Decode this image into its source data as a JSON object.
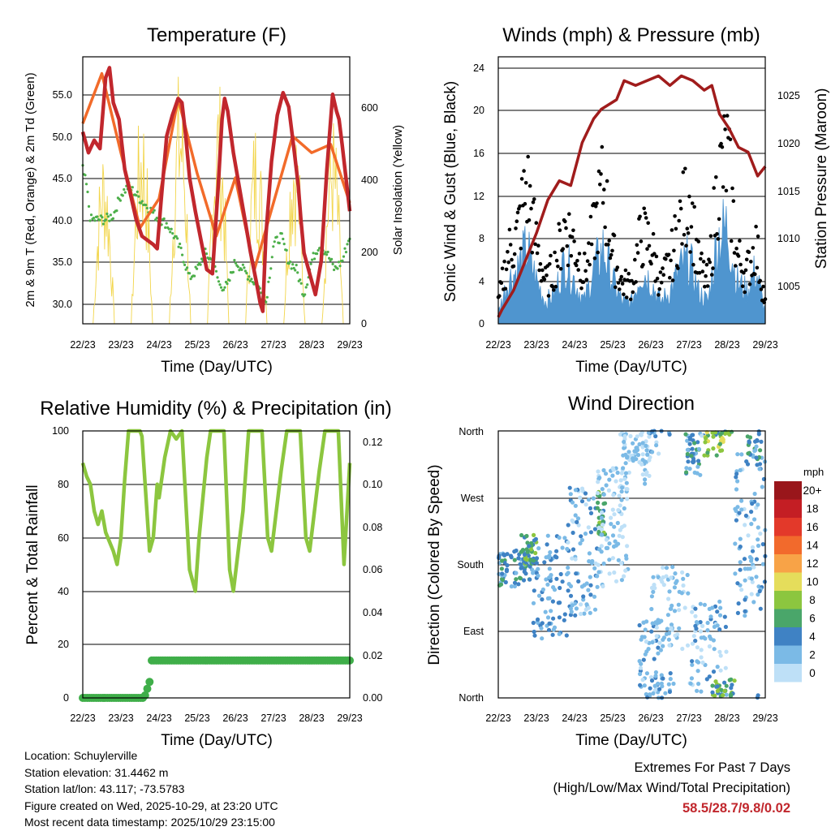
{
  "chart_data": [
    {
      "id": "temperature",
      "type": "line",
      "title": "Temperature (F)",
      "xlabel": "Time (Day/UTC)",
      "ylabel": "2m & 9m T (Red, Orange) & 2m Td (Green)",
      "y2label": "Solar Insolation (Yellow)",
      "xticks": [
        "22/23",
        "23/23",
        "24/23",
        "25/23",
        "26/23",
        "27/23",
        "28/23",
        "29/23"
      ],
      "ylim": [
        27.5,
        59.5
      ],
      "yticks": [
        "30.0",
        "35.0",
        "40.0",
        "45.0",
        "50.0",
        "55.0"
      ],
      "y2lim": [
        0,
        740
      ],
      "y2ticks": [
        "0",
        "200",
        "400",
        "600"
      ],
      "grid": true,
      "series": [
        {
          "name": "2m T",
          "color": "#c1272d",
          "x": [
            0,
            0.15,
            0.3,
            0.45,
            0.6,
            0.7,
            0.8,
            0.95,
            1.1,
            1.25,
            1.4,
            1.55,
            1.7,
            1.85,
            1.95,
            2.05,
            2.2,
            2.35,
            2.5,
            2.6,
            2.7,
            2.8,
            2.95,
            3.1,
            3.25,
            3.4,
            3.55,
            3.65,
            3.72,
            3.8,
            3.95,
            4.1,
            4.25,
            4.4,
            4.55,
            4.65,
            4.72,
            4.8,
            4.95,
            5.1,
            5.25,
            5.4,
            5.55,
            5.65,
            5.72,
            5.8,
            5.95,
            6.1,
            6.25,
            6.4,
            6.55,
            6.65,
            6.72,
            6.8,
            6.9,
            7.0
          ],
          "values": [
            50.5,
            48,
            49.5,
            48.5,
            57,
            58.2,
            54,
            52,
            46,
            43,
            40,
            38,
            37.5,
            37,
            36.5,
            42,
            50,
            52.5,
            54.5,
            54,
            50,
            45,
            41,
            37.5,
            34,
            33.5,
            44,
            52,
            54.5,
            53,
            48,
            44,
            40,
            36,
            32.5,
            30,
            29,
            38,
            47,
            52.5,
            55.2,
            53.5,
            48,
            44,
            40,
            36,
            33.5,
            31,
            35,
            46,
            55,
            53,
            52,
            49,
            45,
            41
          ]
        },
        {
          "name": "9m T",
          "color": "#f26b2a",
          "x": [
            0,
            0.5,
            1,
            1.5,
            2,
            2.5,
            3,
            3.5,
            4,
            4.5,
            5,
            5.5,
            6,
            6.5,
            7
          ],
          "values": [
            51.5,
            57.5,
            48,
            39,
            42.5,
            54.5,
            45.5,
            38,
            45,
            34,
            42,
            50,
            48,
            49,
            42
          ]
        },
        {
          "name": "2m Td",
          "color": "#4daf4a",
          "x": [
            0,
            0.1,
            0.2,
            0.4,
            0.6,
            0.8,
            1,
            1.2,
            1.4,
            1.6,
            1.8,
            2,
            2.2,
            2.4,
            2.6,
            2.8,
            3,
            3.2,
            3.4,
            3.6,
            3.8,
            4,
            4.2,
            4.4,
            4.6,
            4.8,
            5,
            5.2,
            5.4,
            5.6,
            5.8,
            6,
            6.2,
            6.4,
            6.6,
            6.8,
            7
          ],
          "values": [
            46,
            44,
            40,
            40,
            40,
            40.5,
            43,
            44,
            43,
            42,
            41,
            40,
            39.5,
            38,
            36,
            33,
            34,
            36,
            35,
            32,
            32,
            35,
            34,
            33,
            32,
            30,
            37,
            38,
            35,
            34,
            31,
            35,
            37,
            36,
            34,
            35,
            38
          ]
        }
      ],
      "solar": {
        "name": "Solar Insolation",
        "color": "#f2d54a",
        "peaks": [
          {
            "day": 0.55,
            "value": 520
          },
          {
            "day": 1.55,
            "value": 640
          },
          {
            "day": 2.55,
            "value": 730
          },
          {
            "day": 3.55,
            "value": 700
          },
          {
            "day": 4.55,
            "value": 600
          },
          {
            "day": 5.55,
            "value": 610
          },
          {
            "day": 6.55,
            "value": 600
          }
        ]
      }
    },
    {
      "id": "winds",
      "type": "scatter",
      "title": "Winds (mph) & Pressure (mb)",
      "xlabel": "Time (Day/UTC)",
      "ylabel": "Sonic Wind & Gust (Blue, Black)",
      "y2label": "Station Pressure (Maroon)",
      "xticks": [
        "22/23",
        "23/23",
        "24/23",
        "25/23",
        "26/23",
        "27/23",
        "28/23",
        "29/23"
      ],
      "ylim": [
        0,
        25
      ],
      "yticks": [
        "0",
        "4",
        "8",
        "12",
        "16",
        "20",
        "24"
      ],
      "y2lim": [
        1001,
        1029
      ],
      "y2ticks": [
        "1005",
        "1010",
        "1015",
        "1020",
        "1025"
      ],
      "grid": true,
      "series": [
        {
          "name": "Sonic Wind",
          "color": "#4f95cf",
          "x": [
            0,
            0.25,
            0.5,
            0.75,
            1,
            1.25,
            1.5,
            1.75,
            2,
            2.25,
            2.5,
            2.75,
            3,
            3.25,
            3.5,
            3.75,
            4,
            4.25,
            4.5,
            4.75,
            5,
            5.25,
            5.5,
            5.75,
            6,
            6.25,
            6.5,
            6.75,
            7
          ],
          "values": [
            1,
            4,
            5,
            7,
            4,
            2,
            3,
            6,
            4,
            2,
            5,
            7,
            4,
            2,
            2,
            5,
            4,
            2,
            3,
            5,
            6,
            3,
            2,
            8,
            9,
            4,
            3,
            5,
            1
          ]
        },
        {
          "name": "Gust",
          "color": "#000000",
          "x": [
            0,
            0.25,
            0.5,
            0.75,
            1,
            1.25,
            1.5,
            1.75,
            2,
            2.25,
            2.5,
            2.75,
            3,
            3.25,
            3.5,
            3.75,
            4,
            4.25,
            4.5,
            4.75,
            5,
            5.25,
            5.5,
            5.75,
            6,
            6.25,
            6.5,
            6.75,
            7
          ],
          "values": [
            2,
            7,
            9,
            14,
            8,
            4,
            6,
            10,
            8,
            5,
            9,
            14,
            7,
            4,
            4,
            9,
            8,
            4,
            6,
            10,
            13,
            6,
            4,
            14,
            17,
            7,
            5,
            8,
            2
          ]
        },
        {
          "name": "Station Pressure",
          "color": "#a01c1c",
          "x": [
            0,
            0.1,
            0.4,
            0.7,
            1,
            1.3,
            1.6,
            1.9,
            2.2,
            2.5,
            2.7,
            2.9,
            3.1,
            3.3,
            3.6,
            3.9,
            4.2,
            4.5,
            4.8,
            5.1,
            5.4,
            5.6,
            5.8,
            6.05,
            6.3,
            6.55,
            6.8,
            7
          ],
          "values": [
            1001.7,
            1002.5,
            1004.5,
            1007.5,
            1010.5,
            1014,
            1016,
            1015.5,
            1020,
            1022.5,
            1023.5,
            1024,
            1024.5,
            1026.5,
            1026,
            1026.5,
            1027,
            1026,
            1027,
            1026.5,
            1025.5,
            1026,
            1023,
            1021.5,
            1019.5,
            1019,
            1016.5,
            1017.5
          ]
        }
      ]
    },
    {
      "id": "humidity",
      "type": "line",
      "title": "Relative Humidity (%) & Precipitation (in)",
      "xlabel": "Time (Day/UTC)",
      "ylabel": "Percent & Total Rainfall",
      "xticks": [
        "22/23",
        "23/23",
        "24/23",
        "25/23",
        "26/23",
        "27/23",
        "28/23",
        "29/23"
      ],
      "ylim": [
        0,
        100
      ],
      "yticks": [
        "0",
        "20",
        "40",
        "60",
        "80",
        "100"
      ],
      "y2lim": [
        0,
        0.125
      ],
      "y2ticks": [
        "0.00",
        "0.02",
        "0.04",
        "0.06",
        "0.08",
        "0.10",
        "0.12"
      ],
      "grid": true,
      "series": [
        {
          "name": "Relative Humidity",
          "color": "#8cc63f",
          "x": [
            0,
            0.1,
            0.2,
            0.3,
            0.4,
            0.5,
            0.6,
            0.8,
            0.9,
            1,
            1.1,
            1.2,
            1.3,
            1.4,
            1.5,
            1.55,
            1.75,
            1.85,
            1.95,
            2,
            2.15,
            2.3,
            2.45,
            2.6,
            2.8,
            2.95,
            3.05,
            3.25,
            3.35,
            3.5,
            3.7,
            3.85,
            3.95,
            4.2,
            4.35,
            4.5,
            4.7,
            4.85,
            4.95,
            5.2,
            5.35,
            5.5,
            5.7,
            5.85,
            5.95,
            6.2,
            6.35,
            6.5,
            6.7,
            6.85,
            7
          ],
          "values": [
            88,
            83,
            80,
            70,
            65,
            70,
            62,
            55,
            50,
            60,
            82,
            100,
            100,
            100,
            100,
            98,
            55,
            60,
            80,
            75,
            90,
            100,
            97,
            100,
            48,
            40,
            60,
            90,
            100,
            100,
            100,
            48,
            40,
            70,
            100,
            100,
            100,
            60,
            55,
            85,
            100,
            100,
            100,
            60,
            55,
            85,
            100,
            100,
            100,
            50,
            88
          ]
        },
        {
          "name": "Total Rainfall",
          "color": "#3fae49",
          "x": [
            0,
            1.6,
            1.67,
            1.7,
            1.72,
            1.75,
            1.8,
            7
          ],
          "values": [
            0,
            0,
            0.0025,
            0.005,
            0.0075,
            0.0075,
            0.0175,
            0.0175
          ]
        }
      ]
    },
    {
      "id": "wind-direction",
      "type": "scatter",
      "title": "Wind Direction",
      "xlabel": "Time (Day/UTC)",
      "ylabel": "Direction (Colored By Speed)",
      "xticks": [
        "22/23",
        "23/23",
        "24/23",
        "25/23",
        "26/23",
        "27/23",
        "28/23",
        "29/23"
      ],
      "yticks": [
        "North",
        "East",
        "South",
        "West",
        "North"
      ],
      "ylim": [
        0,
        360
      ],
      "grid": true,
      "colorbar": {
        "title": "mph",
        "labels": [
          "20+",
          "18",
          "16",
          "14",
          "12",
          "10",
          "8",
          "6",
          "4",
          "2",
          "0"
        ],
        "colors": [
          "#99161b",
          "#c41e24",
          "#e3392a",
          "#f26a2c",
          "#f8a347",
          "#e5dd5b",
          "#8cc63f",
          "#4aa66a",
          "#3f82c4",
          "#7bbae6",
          "#bee0f7"
        ]
      }
    }
  ],
  "footer": {
    "location": "Location: Schuylerville",
    "elevation": "Station elevation: 31.4462 m",
    "latlon": "Station lat/lon: 43.117; -73.5783",
    "created": "Figure created on Wed, 2025-10-29, at 23:20 UTC",
    "recent": "Most recent data timestamp: 2025/10/29 23:15:00",
    "extremes_title": "Extremes For Past 7 Days",
    "extremes_caption": "(High/Low/Max Wind/Total Precipitation)",
    "extremes_values": "58.5/28.7/9.8/0.02"
  }
}
